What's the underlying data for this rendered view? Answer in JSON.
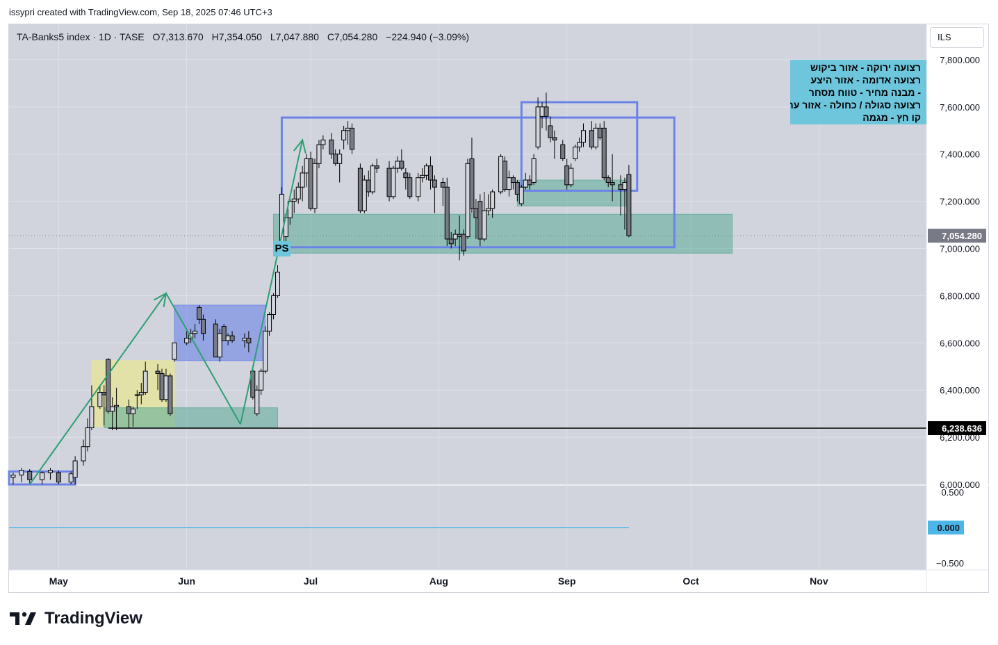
{
  "header": {
    "credit": "issypri created with TradingView.com, Sep 18, 2025 07:46 UTC+3"
  },
  "symbol": {
    "name": "TA-Banks5 index · 1D · TASE",
    "open": "O7,313.670",
    "high": "H7,354.050",
    "low": "L7,047.880",
    "close": "C7,054.280",
    "change": "−224.940 (−3.09%)"
  },
  "currency": "ILS",
  "annotations": {
    "legend_lines": [
      "רצועה ירוקה - אזור ביקוש",
      "רצועה אדומה - אזור היצע",
      "- מבנה מחיר - טווח מסחר",
      "רצועה סגולה / כחולה - אזור ערך",
      "קו חץ - מגמה"
    ],
    "ps_label": "PS"
  },
  "colors": {
    "bull_candle": "#d1d4dc",
    "bear_candle": "#787b86",
    "candle_outline": "#000000",
    "demand_zone": "#5bab98",
    "value_zone": "#6b83e8",
    "yellow_zone": "#e6e39b",
    "trend_arrow": "#2e9e72",
    "grid": "#dfe2ea",
    "plot_bg": "#d1d4dc",
    "price_badge": "#787b86",
    "osc_badge": "#4db6e8"
  },
  "chart_data": {
    "type": "candlestick",
    "title": "",
    "ylim": [
      6000,
      7950
    ],
    "yticks": [
      "6,000.000",
      "6,200.000",
      "6,400.000",
      "6,600.000",
      "6,800.000",
      "7,000.000",
      "7,200.000",
      "7,400.000",
      "7,600.000",
      "7,800.000"
    ],
    "ytick_values": [
      6000,
      6200,
      6400,
      6600,
      6800,
      7000,
      7200,
      7400,
      7600,
      7800
    ],
    "x_month_labels": [
      "May",
      "Jun",
      "Jul",
      "Aug",
      "Sep",
      "Oct",
      "Nov"
    ],
    "x_month_dates": [
      "2025-05-01",
      "2025-06-01",
      "2025-07-01",
      "2025-08-01",
      "2025-09-01",
      "2025-10-01",
      "2025-11-01"
    ],
    "x_range": [
      "2025-04-19",
      "2025-11-27"
    ],
    "last_price": {
      "value": 7054.28,
      "label": "7,054.280"
    },
    "horizontal_line": {
      "value": 6238.636,
      "label": "6,238.636"
    },
    "candles": [
      {
        "date": "2025-04-20",
        "o": 6030,
        "h": 6050,
        "l": 6000,
        "c": 6040
      },
      {
        "date": "2025-04-22",
        "o": 6040,
        "h": 6070,
        "l": 6010,
        "c": 6060
      },
      {
        "date": "2025-04-24",
        "o": 6055,
        "h": 6065,
        "l": 6005,
        "c": 6020
      },
      {
        "date": "2025-04-27",
        "o": 6020,
        "h": 6055,
        "l": 6000,
        "c": 6050
      },
      {
        "date": "2025-04-29",
        "o": 6050,
        "h": 6070,
        "l": 6020,
        "c": 6060
      },
      {
        "date": "2025-05-01",
        "o": 6050,
        "h": 6060,
        "l": 6000,
        "c": 6010
      },
      {
        "date": "2025-05-04",
        "o": 6010,
        "h": 6055,
        "l": 6000,
        "c": 6045
      },
      {
        "date": "2025-05-05",
        "o": 6030,
        "h": 6120,
        "l": 6000,
        "c": 6100
      },
      {
        "date": "2025-05-07",
        "o": 6100,
        "h": 6190,
        "l": 6080,
        "c": 6160
      },
      {
        "date": "2025-05-08",
        "o": 6160,
        "h": 6280,
        "l": 6140,
        "c": 6240
      },
      {
        "date": "2025-05-09",
        "o": 6240,
        "h": 6420,
        "l": 6230,
        "c": 6330
      },
      {
        "date": "2025-05-11",
        "o": 6330,
        "h": 6420,
        "l": 6320,
        "c": 6390
      },
      {
        "date": "2025-05-12",
        "o": 6390,
        "h": 6420,
        "l": 6250,
        "c": 6380
      },
      {
        "date": "2025-05-13",
        "o": 6530,
        "h": 6535,
        "l": 6300,
        "c": 6310
      },
      {
        "date": "2025-05-14",
        "o": 6310,
        "h": 6370,
        "l": 6230,
        "c": 6330
      },
      {
        "date": "2025-05-15",
        "o": 6330,
        "h": 6410,
        "l": 6230,
        "c": 6335
      },
      {
        "date": "2025-05-18",
        "o": 6330,
        "h": 6360,
        "l": 6240,
        "c": 6300
      },
      {
        "date": "2025-05-19",
        "o": 6300,
        "h": 6330,
        "l": 6245,
        "c": 6320
      },
      {
        "date": "2025-05-20",
        "o": 6380,
        "h": 6400,
        "l": 6320,
        "c": 6380
      },
      {
        "date": "2025-05-21",
        "o": 6380,
        "h": 6430,
        "l": 6340,
        "c": 6390
      },
      {
        "date": "2025-05-22",
        "o": 6390,
        "h": 6520,
        "l": 6380,
        "c": 6480
      },
      {
        "date": "2025-05-25",
        "o": 6480,
        "h": 6510,
        "l": 6400,
        "c": 6470
      },
      {
        "date": "2025-05-26",
        "o": 6470,
        "h": 6490,
        "l": 6350,
        "c": 6360
      },
      {
        "date": "2025-05-27",
        "o": 6360,
        "h": 6490,
        "l": 6350,
        "c": 6460
      },
      {
        "date": "2025-05-28",
        "o": 6460,
        "h": 6470,
        "l": 6290,
        "c": 6300
      },
      {
        "date": "2025-05-29",
        "o": 6530,
        "h": 6600,
        "l": 6520,
        "c": 6600
      },
      {
        "date": "2025-06-01",
        "o": 6600,
        "h": 6650,
        "l": 6590,
        "c": 6620
      },
      {
        "date": "2025-06-02",
        "o": 6620,
        "h": 6660,
        "l": 6600,
        "c": 6640
      },
      {
        "date": "2025-06-03",
        "o": 6640,
        "h": 6680,
        "l": 6620,
        "c": 6650
      },
      {
        "date": "2025-06-04",
        "o": 6750,
        "h": 6760,
        "l": 6680,
        "c": 6700
      },
      {
        "date": "2025-06-05",
        "o": 6700,
        "h": 6720,
        "l": 6610,
        "c": 6640
      },
      {
        "date": "2025-06-08",
        "o": 6680,
        "h": 6700,
        "l": 6540,
        "c": 6540
      },
      {
        "date": "2025-06-09",
        "o": 6540,
        "h": 6660,
        "l": 6520,
        "c": 6640
      },
      {
        "date": "2025-06-10",
        "o": 6670,
        "h": 6680,
        "l": 6610,
        "c": 6610
      },
      {
        "date": "2025-06-11",
        "o": 6610,
        "h": 6640,
        "l": 6590,
        "c": 6630
      },
      {
        "date": "2025-06-12",
        "o": 6630,
        "h": 6650,
        "l": 6600,
        "c": 6610
      },
      {
        "date": "2025-06-15",
        "o": 6610,
        "h": 6640,
        "l": 6580,
        "c": 6620
      },
      {
        "date": "2025-06-16",
        "o": 6620,
        "h": 6650,
        "l": 6560,
        "c": 6600
      },
      {
        "date": "2025-06-17",
        "o": 6480,
        "h": 6490,
        "l": 6360,
        "c": 6370
      },
      {
        "date": "2025-06-18",
        "o": 6300,
        "h": 6420,
        "l": 6290,
        "c": 6400
      },
      {
        "date": "2025-06-19",
        "o": 6400,
        "h": 6490,
        "l": 6380,
        "c": 6480
      },
      {
        "date": "2025-06-20",
        "o": 6480,
        "h": 6670,
        "l": 6470,
        "c": 6650
      },
      {
        "date": "2025-06-21",
        "o": 6650,
        "h": 6730,
        "l": 6630,
        "c": 6720
      },
      {
        "date": "2025-06-22",
        "o": 6720,
        "h": 6810,
        "l": 6700,
        "c": 6800
      },
      {
        "date": "2025-06-23",
        "o": 6800,
        "h": 6930,
        "l": 6790,
        "c": 6900
      },
      {
        "date": "2025-06-24",
        "o": 7000,
        "h": 7260,
        "l": 6990,
        "c": 7230
      },
      {
        "date": "2025-06-25",
        "o": 7050,
        "h": 7150,
        "l": 7010,
        "c": 7130
      },
      {
        "date": "2025-06-26",
        "o": 7130,
        "h": 7210,
        "l": 7100,
        "c": 7200
      },
      {
        "date": "2025-06-27",
        "o": 7200,
        "h": 7250,
        "l": 7150,
        "c": 7210
      },
      {
        "date": "2025-06-28",
        "o": 7210,
        "h": 7280,
        "l": 7190,
        "c": 7260
      },
      {
        "date": "2025-06-29",
        "o": 7260,
        "h": 7350,
        "l": 7200,
        "c": 7320
      },
      {
        "date": "2025-06-30",
        "o": 7320,
        "h": 7400,
        "l": 7260,
        "c": 7380
      },
      {
        "date": "2025-07-01",
        "o": 7380,
        "h": 7410,
        "l": 7160,
        "c": 7170
      },
      {
        "date": "2025-07-02",
        "o": 7170,
        "h": 7380,
        "l": 7150,
        "c": 7360
      },
      {
        "date": "2025-07-03",
        "o": 7360,
        "h": 7460,
        "l": 7340,
        "c": 7440
      },
      {
        "date": "2025-07-04",
        "o": 7440,
        "h": 7480,
        "l": 7420,
        "c": 7460
      },
      {
        "date": "2025-07-06",
        "o": 7460,
        "h": 7490,
        "l": 7380,
        "c": 7400
      },
      {
        "date": "2025-07-07",
        "o": 7400,
        "h": 7420,
        "l": 7350,
        "c": 7360
      },
      {
        "date": "2025-07-08",
        "o": 7360,
        "h": 7420,
        "l": 7280,
        "c": 7400
      },
      {
        "date": "2025-07-09",
        "o": 7460,
        "h": 7520,
        "l": 7420,
        "c": 7500
      },
      {
        "date": "2025-07-10",
        "o": 7500,
        "h": 7540,
        "l": 7440,
        "c": 7510
      },
      {
        "date": "2025-07-11",
        "o": 7510,
        "h": 7530,
        "l": 7400,
        "c": 7420
      },
      {
        "date": "2025-07-13",
        "o": 7340,
        "h": 7360,
        "l": 7150,
        "c": 7160
      },
      {
        "date": "2025-07-14",
        "o": 7160,
        "h": 7310,
        "l": 7150,
        "c": 7290
      },
      {
        "date": "2025-07-15",
        "o": 7290,
        "h": 7330,
        "l": 7220,
        "c": 7240
      },
      {
        "date": "2025-07-16",
        "o": 7240,
        "h": 7360,
        "l": 7230,
        "c": 7350
      },
      {
        "date": "2025-07-17",
        "o": 7350,
        "h": 7380,
        "l": 7320,
        "c": 7340
      },
      {
        "date": "2025-07-20",
        "o": 7340,
        "h": 7370,
        "l": 7200,
        "c": 7220
      },
      {
        "date": "2025-07-21",
        "o": 7220,
        "h": 7350,
        "l": 7210,
        "c": 7340
      },
      {
        "date": "2025-07-22",
        "o": 7340,
        "h": 7390,
        "l": 7320,
        "c": 7370
      },
      {
        "date": "2025-07-23",
        "o": 7370,
        "h": 7420,
        "l": 7330,
        "c": 7340
      },
      {
        "date": "2025-07-24",
        "o": 7320,
        "h": 7340,
        "l": 7250,
        "c": 7300
      },
      {
        "date": "2025-07-25",
        "o": 7300,
        "h": 7320,
        "l": 7210,
        "c": 7220
      },
      {
        "date": "2025-07-27",
        "o": 7220,
        "h": 7320,
        "l": 7200,
        "c": 7300
      },
      {
        "date": "2025-07-28",
        "o": 7300,
        "h": 7340,
        "l": 7280,
        "c": 7310
      },
      {
        "date": "2025-07-29",
        "o": 7310,
        "h": 7360,
        "l": 7290,
        "c": 7350
      },
      {
        "date": "2025-07-30",
        "o": 7350,
        "h": 7390,
        "l": 7250,
        "c": 7290
      },
      {
        "date": "2025-07-31",
        "o": 7290,
        "h": 7310,
        "l": 7150,
        "c": 7260
      },
      {
        "date": "2025-08-02",
        "o": 7280,
        "h": 7300,
        "l": 7180,
        "c": 7260
      },
      {
        "date": "2025-08-03",
        "o": 7260,
        "h": 7300,
        "l": 7010,
        "c": 7040
      },
      {
        "date": "2025-08-04",
        "o": 7040,
        "h": 7070,
        "l": 7000,
        "c": 7020
      },
      {
        "date": "2025-08-05",
        "o": 7040,
        "h": 7080,
        "l": 7010,
        "c": 7060
      },
      {
        "date": "2025-08-06",
        "o": 7060,
        "h": 7140,
        "l": 6950,
        "c": 7050
      },
      {
        "date": "2025-08-07",
        "o": 7060,
        "h": 7080,
        "l": 6970,
        "c": 6990
      },
      {
        "date": "2025-08-08",
        "o": 7050,
        "h": 7380,
        "l": 7040,
        "c": 7360
      },
      {
        "date": "2025-08-09",
        "o": 7380,
        "h": 7470,
        "l": 7150,
        "c": 7170
      },
      {
        "date": "2025-08-10",
        "o": 7170,
        "h": 7210,
        "l": 7040,
        "c": 7130
      },
      {
        "date": "2025-08-11",
        "o": 7200,
        "h": 7230,
        "l": 7010,
        "c": 7040
      },
      {
        "date": "2025-08-12",
        "o": 7040,
        "h": 7240,
        "l": 7030,
        "c": 7160
      },
      {
        "date": "2025-08-13",
        "o": 7160,
        "h": 7230,
        "l": 7140,
        "c": 7170
      },
      {
        "date": "2025-08-14",
        "o": 7170,
        "h": 7250,
        "l": 7130,
        "c": 7240
      },
      {
        "date": "2025-08-16",
        "o": 7240,
        "h": 7400,
        "l": 7230,
        "c": 7390
      },
      {
        "date": "2025-08-17",
        "o": 7370,
        "h": 7390,
        "l": 7240,
        "c": 7250
      },
      {
        "date": "2025-08-18",
        "o": 7250,
        "h": 7330,
        "l": 7220,
        "c": 7300
      },
      {
        "date": "2025-08-19",
        "o": 7300,
        "h": 7310,
        "l": 7250,
        "c": 7280
      },
      {
        "date": "2025-08-20",
        "o": 7280,
        "h": 7290,
        "l": 7200,
        "c": 7230
      },
      {
        "date": "2025-08-21",
        "o": 7190,
        "h": 7270,
        "l": 7180,
        "c": 7260
      },
      {
        "date": "2025-08-22",
        "o": 7260,
        "h": 7320,
        "l": 7250,
        "c": 7290
      },
      {
        "date": "2025-08-23",
        "o": 7290,
        "h": 7310,
        "l": 7250,
        "c": 7270
      },
      {
        "date": "2025-08-24",
        "o": 7280,
        "h": 7400,
        "l": 7270,
        "c": 7380
      },
      {
        "date": "2025-08-25",
        "o": 7430,
        "h": 7640,
        "l": 7420,
        "c": 7600
      },
      {
        "date": "2025-08-26",
        "o": 7560,
        "h": 7620,
        "l": 7510,
        "c": 7600
      },
      {
        "date": "2025-08-27",
        "o": 7600,
        "h": 7660,
        "l": 7500,
        "c": 7560
      },
      {
        "date": "2025-08-28",
        "o": 7520,
        "h": 7560,
        "l": 7450,
        "c": 7470
      },
      {
        "date": "2025-08-29",
        "o": 7470,
        "h": 7500,
        "l": 7380,
        "c": 7460
      },
      {
        "date": "2025-08-31",
        "o": 7440,
        "h": 7460,
        "l": 7370,
        "c": 7380
      },
      {
        "date": "2025-09-01",
        "o": 7350,
        "h": 7380,
        "l": 7250,
        "c": 7270
      },
      {
        "date": "2025-09-02",
        "o": 7270,
        "h": 7360,
        "l": 7260,
        "c": 7340
      },
      {
        "date": "2025-09-03",
        "o": 7380,
        "h": 7440,
        "l": 7370,
        "c": 7430
      },
      {
        "date": "2025-09-04",
        "o": 7430,
        "h": 7470,
        "l": 7410,
        "c": 7450
      },
      {
        "date": "2025-09-05",
        "o": 7450,
        "h": 7530,
        "l": 7430,
        "c": 7500
      },
      {
        "date": "2025-09-07",
        "o": 7500,
        "h": 7540,
        "l": 7420,
        "c": 7430
      },
      {
        "date": "2025-09-08",
        "o": 7430,
        "h": 7530,
        "l": 7420,
        "c": 7510
      },
      {
        "date": "2025-09-09",
        "o": 7510,
        "h": 7530,
        "l": 7460,
        "c": 7470
      },
      {
        "date": "2025-09-10",
        "o": 7510,
        "h": 7540,
        "l": 7290,
        "c": 7300
      },
      {
        "date": "2025-09-11",
        "o": 7300,
        "h": 7310,
        "l": 7260,
        "c": 7280
      },
      {
        "date": "2025-09-12",
        "o": 7280,
        "h": 7400,
        "l": 7200,
        "c": 7270
      },
      {
        "date": "2025-09-14",
        "o": 7270,
        "h": 7310,
        "l": 7140,
        "c": 7250
      },
      {
        "date": "2025-09-15",
        "o": 7250,
        "h": 7300,
        "l": 7080,
        "c": 7280
      },
      {
        "date": "2025-09-16",
        "o": 7313.67,
        "h": 7354.05,
        "l": 7047.88,
        "c": 7054.28
      }
    ],
    "oscillator": {
      "ylim": [
        -0.6,
        0.6
      ],
      "yticks": [
        "0.500",
        "0.000",
        "−0.500"
      ],
      "ytick_values": [
        0.5,
        0,
        -0.5
      ],
      "value": 0,
      "value_label": "0.000",
      "x_range": [
        "2025-04-19",
        "2025-09-16"
      ]
    },
    "zones": [
      {
        "kind": "value",
        "x0": "2025-04-19",
        "x1": "2025-05-05",
        "y0": 6000,
        "y1": 6055,
        "style": "outline"
      },
      {
        "kind": "yellow",
        "x0": "2025-05-09",
        "x1": "2025-05-29",
        "y0": 6245,
        "y1": 6525,
        "style": "fill"
      },
      {
        "kind": "demand",
        "x0": "2025-05-12",
        "x1": "2025-06-23",
        "y0": 6240,
        "y1": 6325,
        "style": "fill"
      },
      {
        "kind": "value",
        "x0": "2025-05-29",
        "x1": "2025-06-20",
        "y0": 6525,
        "y1": 6760,
        "style": "fill"
      },
      {
        "kind": "demand",
        "x0": "2025-06-22",
        "x1": "2025-10-11",
        "y0": 6980,
        "y1": 7145,
        "style": "fill"
      },
      {
        "kind": "value",
        "x0": "2025-06-24",
        "x1": "2025-09-27",
        "y0": 7005,
        "y1": 7555,
        "style": "outline"
      },
      {
        "kind": "demand",
        "x0": "2025-08-20",
        "x1": "2025-09-16",
        "y0": 7180,
        "y1": 7290,
        "style": "fill"
      },
      {
        "kind": "value",
        "x0": "2025-08-21",
        "x1": "2025-09-18",
        "y0": 7245,
        "y1": 7620,
        "style": "outline"
      }
    ],
    "trend_arrows": [
      {
        "points": [
          [
            "2025-04-24",
            6000
          ],
          [
            "2025-05-27",
            6810
          ]
        ],
        "head": true
      },
      {
        "points": [
          [
            "2025-05-27",
            6810
          ],
          [
            "2025-06-14",
            6255
          ]
        ],
        "head": false
      },
      {
        "points": [
          [
            "2025-06-14",
            6255
          ],
          [
            "2025-06-29",
            7460
          ]
        ],
        "head": true
      }
    ]
  }
}
